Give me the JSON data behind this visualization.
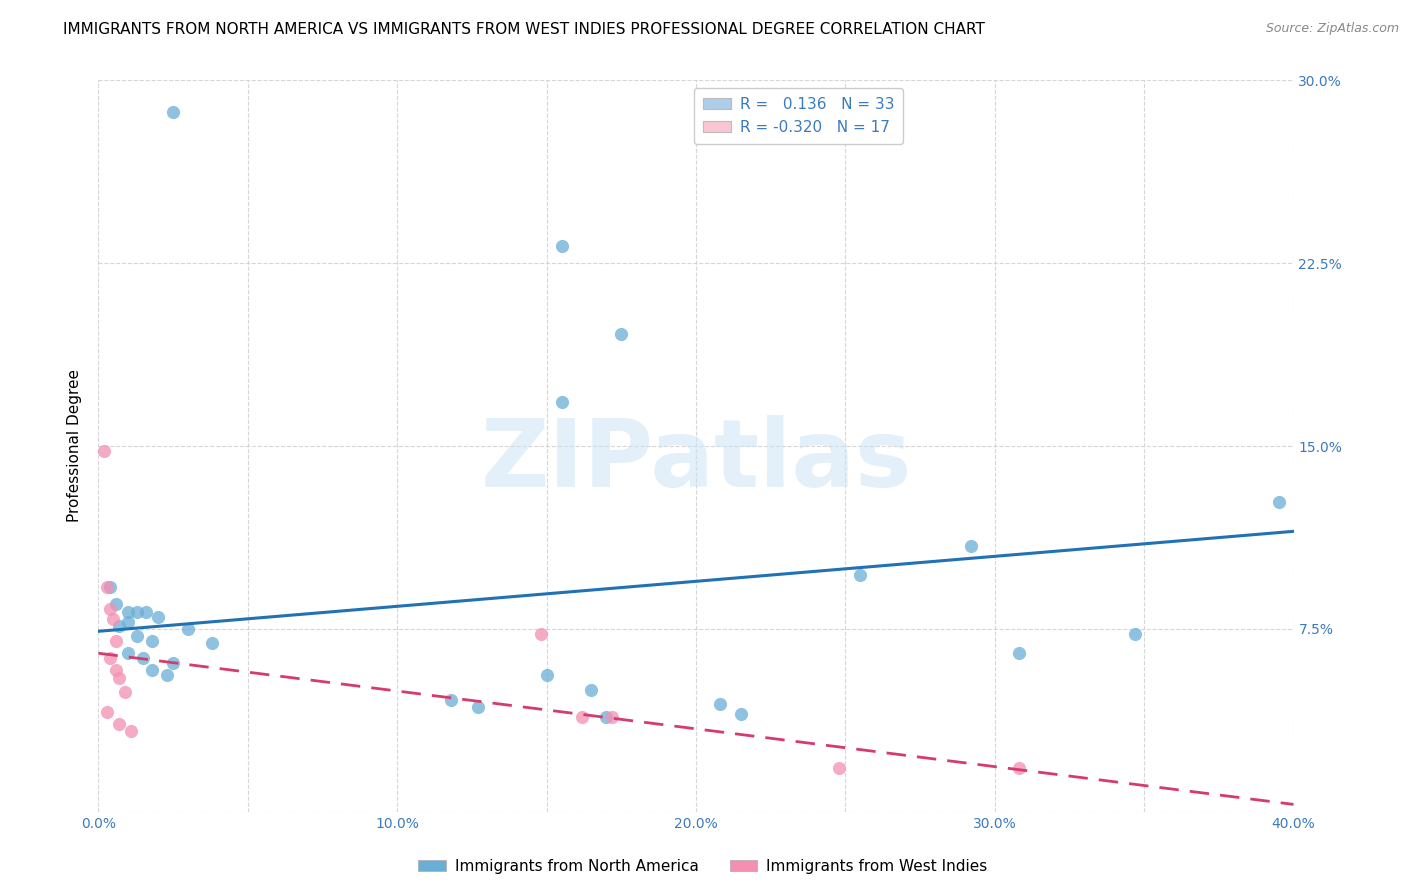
{
  "title": "IMMIGRANTS FROM NORTH AMERICA VS IMMIGRANTS FROM WEST INDIES PROFESSIONAL DEGREE CORRELATION CHART",
  "source": "Source: ZipAtlas.com",
  "ylabel": "Professional Degree",
  "xlim": [
    0.0,
    0.4
  ],
  "ylim": [
    0.0,
    0.3
  ],
  "xtick_labels": [
    "0.0%",
    "",
    "10.0%",
    "",
    "20.0%",
    "",
    "30.0%",
    "",
    "40.0%"
  ],
  "xtick_vals": [
    0.0,
    0.05,
    0.1,
    0.15,
    0.2,
    0.25,
    0.3,
    0.35,
    0.4
  ],
  "ytick_vals": [
    0.0,
    0.075,
    0.15,
    0.225,
    0.3
  ],
  "right_ytick_labels": [
    "",
    "7.5%",
    "15.0%",
    "22.5%",
    "30.0%"
  ],
  "legend_entries": [
    {
      "label": "R =   0.136   N = 33",
      "color": "#aecde8"
    },
    {
      "label": "R = -0.320   N = 17",
      "color": "#f9c6d3"
    }
  ],
  "legend_bottom": [
    "Immigrants from North America",
    "Immigrants from West Indies"
  ],
  "blue_color": "#6aaed6",
  "pink_color": "#f48fb1",
  "blue_scatter": [
    [
      0.025,
      0.287
    ],
    [
      0.155,
      0.232
    ],
    [
      0.175,
      0.196
    ],
    [
      0.155,
      0.168
    ],
    [
      0.004,
      0.092
    ],
    [
      0.006,
      0.085
    ],
    [
      0.01,
      0.082
    ],
    [
      0.013,
      0.082
    ],
    [
      0.016,
      0.082
    ],
    [
      0.02,
      0.08
    ],
    [
      0.01,
      0.078
    ],
    [
      0.007,
      0.076
    ],
    [
      0.03,
      0.075
    ],
    [
      0.013,
      0.072
    ],
    [
      0.018,
      0.07
    ],
    [
      0.038,
      0.069
    ],
    [
      0.01,
      0.065
    ],
    [
      0.015,
      0.063
    ],
    [
      0.025,
      0.061
    ],
    [
      0.018,
      0.058
    ],
    [
      0.023,
      0.056
    ],
    [
      0.15,
      0.056
    ],
    [
      0.165,
      0.05
    ],
    [
      0.17,
      0.039
    ],
    [
      0.215,
      0.04
    ],
    [
      0.255,
      0.097
    ],
    [
      0.292,
      0.109
    ],
    [
      0.347,
      0.073
    ],
    [
      0.395,
      0.127
    ],
    [
      0.308,
      0.065
    ],
    [
      0.118,
      0.046
    ],
    [
      0.127,
      0.043
    ],
    [
      0.208,
      0.044
    ]
  ],
  "pink_scatter": [
    [
      0.002,
      0.148
    ],
    [
      0.003,
      0.092
    ],
    [
      0.004,
      0.083
    ],
    [
      0.005,
      0.079
    ],
    [
      0.006,
      0.07
    ],
    [
      0.004,
      0.063
    ],
    [
      0.006,
      0.058
    ],
    [
      0.007,
      0.055
    ],
    [
      0.009,
      0.049
    ],
    [
      0.003,
      0.041
    ],
    [
      0.007,
      0.036
    ],
    [
      0.011,
      0.033
    ],
    [
      0.148,
      0.073
    ],
    [
      0.162,
      0.039
    ],
    [
      0.172,
      0.039
    ],
    [
      0.248,
      0.018
    ],
    [
      0.308,
      0.018
    ]
  ],
  "blue_line_x": [
    0.0,
    0.4
  ],
  "blue_line_y": [
    0.074,
    0.115
  ],
  "pink_line_x": [
    0.0,
    0.4
  ],
  "pink_line_y": [
    0.065,
    0.003
  ],
  "watermark": "ZIPatlas",
  "title_fontsize": 11,
  "axis_fontsize": 11,
  "tick_fontsize": 10,
  "legend_fontsize": 11
}
